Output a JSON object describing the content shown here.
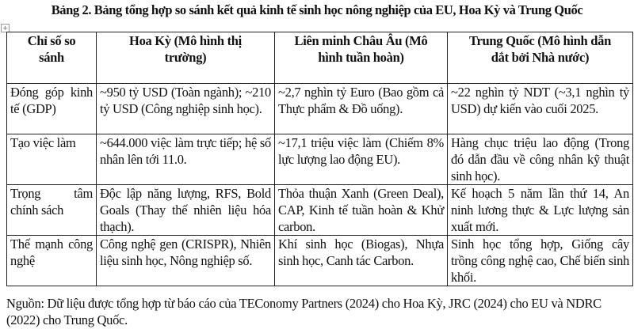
{
  "title": "Bảng 2. Bảng tổng hợp so sánh kết quả kinh tế sinh học nông nghiệp của EU, Hoa Kỳ và Trung Quốc",
  "table": {
    "headers": [
      "Chỉ số so sánh",
      "Hoa Kỳ (Mô hình thị trường)",
      "Liên minh Châu Âu (Mô hình tuần hoàn)",
      "Trung Quốc (Mô hình dẫn dắt bởi Nhà nước)"
    ],
    "rows": [
      [
        "Đóng góp kinh tế (GDP)",
        "~950 tỷ USD (Toàn ngành); ~210 tỷ USD (Công nghiệp sinh học).",
        "~2,7 nghìn tỷ Euro (Bao gồm cả Thực phẩm & Đồ uống).",
        "~22 nghìn tỷ NDT (~3,1 nghìn tỷ USD) dự kiến vào cuối 2025."
      ],
      [
        "Tạo việc làm",
        "~644.000 việc làm trực tiếp; hệ số nhân lên tới 11.0.",
        "~17,1 triệu việc làm (Chiếm 8% lực lượng lao động EU).",
        "Hàng chục triệu lao động (Trong đó dẫn đầu về công nhân kỹ thuật sinh học)."
      ],
      [
        "Trọng tâm chính sách",
        "Độc lập năng lượng, RFS, Bold Goals (Thay thế nhiên liệu hóa thạch).",
        "Thỏa thuận Xanh (Green Deal), CAP, Kinh tế tuần hoàn & Khử carbon.",
        "Kế hoạch 5 năm lần thứ 14, An ninh lương thực & Lực lượng sản xuất mới."
      ],
      [
        "Thế mạnh công nghệ",
        "Công nghệ gen (CRISPR), Nhiên liệu sinh học, Nông nghiệp số.",
        "Khí sinh học (Biogas), Nhựa sinh học, Canh tác Carbon.",
        "Sinh học tổng hợp, Giống cây trồng công nghệ cao, Chế biến sinh khối."
      ]
    ]
  },
  "source": "Nguồn: Dữ liệu được tổng hợp từ báo cáo của TEConomy Partners (2024) cho Hoa Kỳ, JRC (2024) cho EU và NDRC (2022) cho Trung Quốc."
}
